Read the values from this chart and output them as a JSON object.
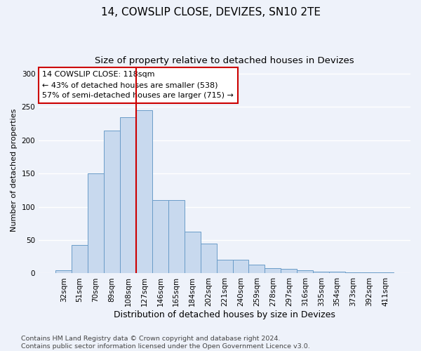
{
  "title": "14, COWSLIP CLOSE, DEVIZES, SN10 2TE",
  "subtitle": "Size of property relative to detached houses in Devizes",
  "xlabel": "Distribution of detached houses by size in Devizes",
  "ylabel": "Number of detached properties",
  "categories": [
    "32sqm",
    "51sqm",
    "70sqm",
    "89sqm",
    "108sqm",
    "127sqm",
    "146sqm",
    "165sqm",
    "184sqm",
    "202sqm",
    "221sqm",
    "240sqm",
    "259sqm",
    "278sqm",
    "297sqm",
    "316sqm",
    "335sqm",
    "354sqm",
    "373sqm",
    "392sqm",
    "411sqm"
  ],
  "values": [
    5,
    43,
    150,
    215,
    235,
    245,
    110,
    110,
    63,
    45,
    20,
    20,
    13,
    8,
    7,
    5,
    3,
    3,
    2,
    2,
    2
  ],
  "bar_color": "#c8d9ee",
  "bar_edge_color": "#6a9cc8",
  "vline_x_index": 5,
  "vline_color": "#cc0000",
  "annotation_text": "14 COWSLIP CLOSE: 118sqm\n← 43% of detached houses are smaller (538)\n57% of semi-detached houses are larger (715) →",
  "annotation_box_color": "white",
  "annotation_box_edge_color": "#cc0000",
  "ylim": [
    0,
    310
  ],
  "yticks": [
    0,
    50,
    100,
    150,
    200,
    250,
    300
  ],
  "footer_line1": "Contains HM Land Registry data © Crown copyright and database right 2024.",
  "footer_line2": "Contains public sector information licensed under the Open Government Licence v3.0.",
  "background_color": "#eef2fa",
  "grid_color": "#ffffff",
  "title_fontsize": 11,
  "subtitle_fontsize": 9.5,
  "xlabel_fontsize": 9,
  "ylabel_fontsize": 8,
  "tick_fontsize": 7.5,
  "annotation_fontsize": 8,
  "footer_fontsize": 6.8
}
